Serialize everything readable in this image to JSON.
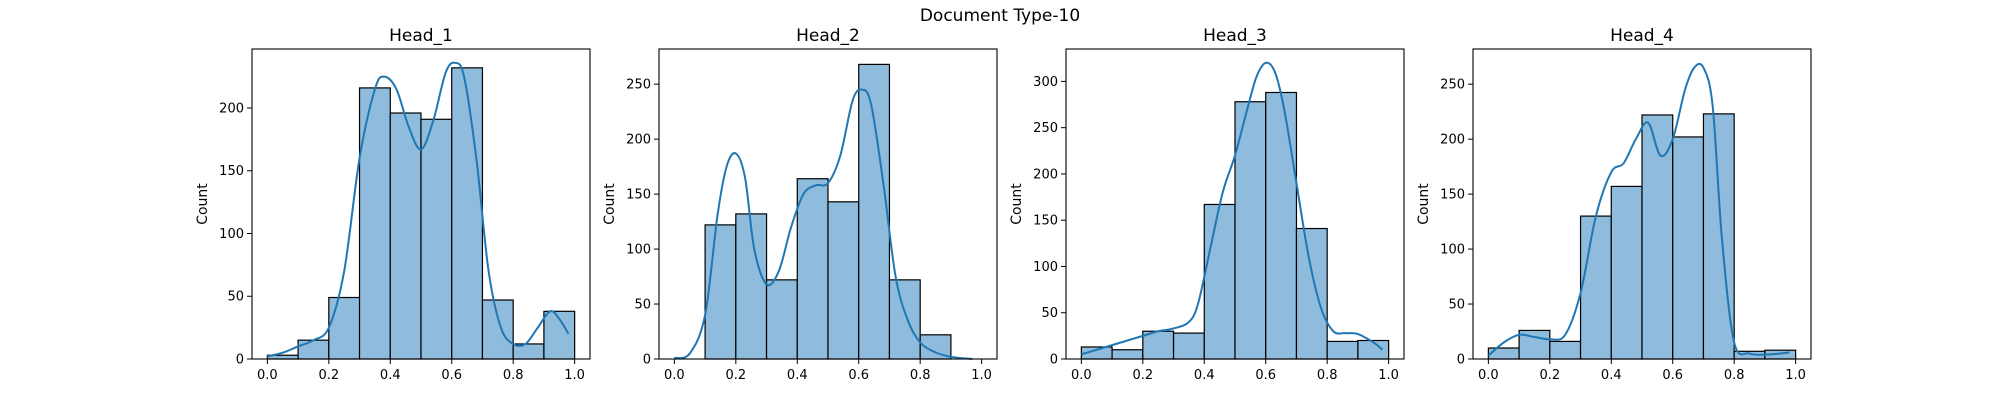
{
  "figure": {
    "suptitle": "Document Type-10"
  },
  "colors": {
    "bar_fill": "#8fbbdc",
    "bar_edge": "#000000",
    "kde_line": "#1f77b4",
    "axes": "#000000"
  },
  "chart_data": [
    {
      "type": "bar",
      "title": "Head_1",
      "ylabel": "Count",
      "xlabel": "",
      "bin_edges": [
        0.0,
        0.1,
        0.2,
        0.3,
        0.4,
        0.5,
        0.6,
        0.7,
        0.8,
        0.9,
        1.0
      ],
      "values": [
        3,
        15,
        49,
        216,
        196,
        191,
        232,
        47,
        12,
        38
      ],
      "xlim": [
        -0.05,
        1.05
      ],
      "ylim": [
        0,
        247
      ],
      "xticks": [
        0.0,
        0.2,
        0.4,
        0.6,
        0.8,
        1.0
      ],
      "xtick_labels": [
        "0.0",
        "0.2",
        "0.4",
        "0.6",
        "0.8",
        "1.0"
      ],
      "yticks": [
        0,
        50,
        100,
        150,
        200
      ],
      "ytick_labels": [
        "0",
        "50",
        "100",
        "150",
        "200"
      ],
      "kde": {
        "x": [
          0.0,
          0.05,
          0.1,
          0.15,
          0.2,
          0.25,
          0.3,
          0.35,
          0.38,
          0.42,
          0.46,
          0.5,
          0.54,
          0.58,
          0.61,
          0.64,
          0.68,
          0.72,
          0.76,
          0.8,
          0.84,
          0.88,
          0.92,
          0.95,
          0.98
        ],
        "y": [
          2,
          5,
          10,
          15,
          25,
          70,
          160,
          215,
          225,
          215,
          185,
          167,
          190,
          228,
          236,
          225,
          160,
          70,
          25,
          12,
          12,
          25,
          38,
          32,
          20
        ]
      }
    },
    {
      "type": "bar",
      "title": "Head_2",
      "ylabel": "Count",
      "xlabel": "",
      "bin_edges": [
        0.1,
        0.2,
        0.3,
        0.4,
        0.5,
        0.6,
        0.7,
        0.8,
        0.9
      ],
      "values": [
        122,
        132,
        72,
        164,
        143,
        268,
        72,
        22
      ],
      "xlim": [
        -0.05,
        1.05
      ],
      "ylim": [
        0,
        282
      ],
      "xticks": [
        0.0,
        0.2,
        0.4,
        0.6,
        0.8,
        1.0
      ],
      "xtick_labels": [
        "0.0",
        "0.2",
        "0.4",
        "0.6",
        "0.8",
        "1.0"
      ],
      "yticks": [
        0,
        50,
        100,
        150,
        200,
        250
      ],
      "ytick_labels": [
        "0",
        "50",
        "100",
        "150",
        "200",
        "250"
      ],
      "kde": {
        "x": [
          0.0,
          0.05,
          0.1,
          0.14,
          0.17,
          0.2,
          0.23,
          0.26,
          0.3,
          0.34,
          0.38,
          0.42,
          0.46,
          0.5,
          0.54,
          0.58,
          0.61,
          0.64,
          0.68,
          0.72,
          0.76,
          0.8,
          0.85,
          0.9,
          0.97
        ],
        "y": [
          1,
          5,
          40,
          130,
          175,
          187,
          165,
          100,
          68,
          80,
          120,
          150,
          158,
          160,
          185,
          235,
          245,
          232,
          160,
          75,
          35,
          15,
          6,
          2,
          0
        ]
      }
    },
    {
      "type": "bar",
      "title": "Head_3",
      "ylabel": "Count",
      "xlabel": "",
      "bin_edges": [
        0.0,
        0.1,
        0.2,
        0.3,
        0.4,
        0.5,
        0.6,
        0.7,
        0.8,
        0.9,
        1.0
      ],
      "values": [
        13,
        10,
        30,
        28,
        167,
        278,
        288,
        141,
        19,
        20
      ],
      "xlim": [
        -0.05,
        1.05
      ],
      "ylim": [
        0,
        335
      ],
      "xticks": [
        0.0,
        0.2,
        0.4,
        0.6,
        0.8,
        1.0
      ],
      "xtick_labels": [
        "0.0",
        "0.2",
        "0.4",
        "0.6",
        "0.8",
        "1.0"
      ],
      "yticks": [
        0,
        50,
        100,
        150,
        200,
        250,
        300
      ],
      "ytick_labels": [
        "0",
        "50",
        "100",
        "150",
        "200",
        "250",
        "300"
      ],
      "kde": {
        "x": [
          0.0,
          0.05,
          0.1,
          0.15,
          0.2,
          0.25,
          0.3,
          0.35,
          0.38,
          0.42,
          0.46,
          0.5,
          0.54,
          0.57,
          0.6,
          0.63,
          0.66,
          0.7,
          0.74,
          0.78,
          0.82,
          0.86,
          0.9,
          0.95,
          0.98
        ],
        "y": [
          5,
          10,
          15,
          20,
          25,
          30,
          33,
          40,
          60,
          120,
          180,
          220,
          270,
          305,
          320,
          310,
          270,
          190,
          110,
          55,
          30,
          28,
          27,
          18,
          10
        ]
      }
    },
    {
      "type": "bar",
      "title": "Head_4",
      "ylabel": "Count",
      "xlabel": "",
      "bin_edges": [
        0.0,
        0.1,
        0.2,
        0.3,
        0.4,
        0.5,
        0.6,
        0.7,
        0.8,
        0.9,
        1.0
      ],
      "values": [
        10,
        26,
        16,
        130,
        157,
        222,
        202,
        223,
        7,
        8
      ],
      "xlim": [
        -0.05,
        1.05
      ],
      "ylim": [
        0,
        282
      ],
      "xticks": [
        0.0,
        0.2,
        0.4,
        0.6,
        0.8,
        1.0
      ],
      "xtick_labels": [
        "0.0",
        "0.2",
        "0.4",
        "0.6",
        "0.8",
        "1.0"
      ],
      "yticks": [
        0,
        50,
        100,
        150,
        200,
        250
      ],
      "ytick_labels": [
        "0",
        "50",
        "100",
        "150",
        "200",
        "250"
      ],
      "kde": {
        "x": [
          0.0,
          0.05,
          0.1,
          0.15,
          0.2,
          0.25,
          0.3,
          0.35,
          0.4,
          0.44,
          0.48,
          0.52,
          0.56,
          0.6,
          0.64,
          0.67,
          0.7,
          0.73,
          0.76,
          0.8,
          0.85,
          0.9,
          0.95,
          0.98
        ],
        "y": [
          3,
          15,
          22,
          20,
          18,
          22,
          60,
          130,
          170,
          178,
          200,
          215,
          185,
          200,
          245,
          265,
          265,
          230,
          110,
          15,
          5,
          4,
          5,
          6
        ]
      }
    }
  ]
}
